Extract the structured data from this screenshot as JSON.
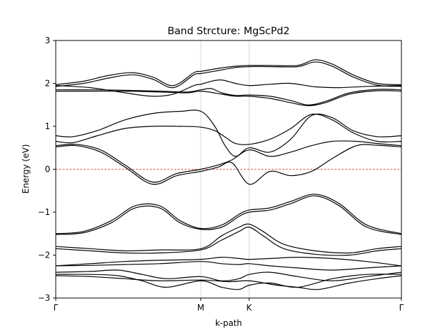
{
  "chart_data": {
    "type": "line",
    "title": "Band Strcture: MgScPd2",
    "xlabel": "k-path",
    "ylabel": "Energy (eV)",
    "ylim": [
      -3,
      3
    ],
    "yticks": [
      "3",
      "2",
      "1",
      "0",
      "−1",
      "−2",
      "−3"
    ],
    "ytick_values": [
      3,
      2,
      1,
      0,
      -1,
      -2,
      -3
    ],
    "xlim": [
      0,
      1
    ],
    "high_symmetry_points": [
      {
        "label": "Γ",
        "x": 0.0
      },
      {
        "label": "M",
        "x": 0.4194
      },
      {
        "label": "K",
        "x": 0.5593
      },
      {
        "label": "Γ",
        "x": 1.0
      }
    ],
    "fermi_level": 0,
    "fermi_color": "#d62728",
    "line_color": "#000000",
    "vline_color": "#cccccc",
    "grid": false,
    "series": [
      {
        "x": [
          0,
          0.08,
          0.15,
          0.22,
          0.28,
          0.34,
          0.4,
          0.42,
          0.47,
          0.52,
          0.56,
          0.62,
          0.7,
          0.75,
          0.8,
          0.86,
          0.93,
          1.0
        ],
        "y": [
          1.97,
          2.05,
          2.18,
          2.25,
          2.15,
          1.95,
          2.25,
          2.28,
          2.35,
          2.4,
          2.42,
          2.42,
          2.42,
          2.55,
          2.45,
          2.2,
          2.0,
          1.97
        ]
      },
      {
        "x": [
          0,
          0.08,
          0.15,
          0.22,
          0.28,
          0.34,
          0.4,
          0.42,
          0.47,
          0.52,
          0.56,
          0.62,
          0.7,
          0.75,
          0.8,
          0.86,
          0.93,
          1.0
        ],
        "y": [
          1.93,
          2.0,
          2.12,
          2.2,
          2.1,
          1.9,
          2.2,
          2.23,
          2.3,
          2.37,
          2.39,
          2.39,
          2.39,
          2.5,
          2.4,
          2.15,
          1.96,
          1.93
        ]
      },
      {
        "x": [
          0,
          0.1,
          0.2,
          0.28,
          0.34,
          0.4,
          0.42,
          0.45,
          0.48,
          0.52,
          0.56,
          0.62,
          0.68,
          0.75,
          0.82,
          0.9,
          1.0
        ],
        "y": [
          1.95,
          1.9,
          1.78,
          1.7,
          1.75,
          1.95,
          1.98,
          2.05,
          2.08,
          2.0,
          1.95,
          1.98,
          2.0,
          1.92,
          1.9,
          1.93,
          1.95
        ]
      },
      {
        "x": [
          0,
          0.1,
          0.2,
          0.3,
          0.38,
          0.42,
          0.45,
          0.48,
          0.52,
          0.56,
          0.62,
          0.68,
          0.73,
          0.78,
          0.85,
          0.93,
          1.0
        ],
        "y": [
          1.85,
          1.85,
          1.84,
          1.82,
          1.8,
          1.85,
          1.88,
          1.78,
          1.72,
          1.73,
          1.7,
          1.6,
          1.5,
          1.58,
          1.78,
          1.86,
          1.85
        ]
      },
      {
        "x": [
          0,
          0.1,
          0.2,
          0.3,
          0.38,
          0.42,
          0.48,
          0.52,
          0.56,
          0.62,
          0.68,
          0.73,
          0.78,
          0.85,
          0.93,
          1.0
        ],
        "y": [
          1.82,
          1.82,
          1.82,
          1.8,
          1.78,
          1.82,
          1.75,
          1.7,
          1.7,
          1.65,
          1.55,
          1.48,
          1.55,
          1.75,
          1.83,
          1.82
        ]
      },
      {
        "x": [
          0,
          0.05,
          0.12,
          0.2,
          0.28,
          0.36,
          0.42,
          0.46,
          0.49,
          0.52,
          0.56,
          0.62,
          0.68,
          0.74,
          0.8,
          0.86,
          0.93,
          1.0
        ],
        "y": [
          0.78,
          0.76,
          0.9,
          1.15,
          1.3,
          1.35,
          1.35,
          1.0,
          0.55,
          0.3,
          0.5,
          0.4,
          0.7,
          1.25,
          1.2,
          0.9,
          0.76,
          0.78
        ]
      },
      {
        "x": [
          0,
          0.05,
          0.12,
          0.2,
          0.28,
          0.36,
          0.42,
          0.46,
          0.49,
          0.52,
          0.56,
          0.62,
          0.68,
          0.74,
          0.8,
          0.86,
          0.93,
          1.0
        ],
        "y": [
          0.65,
          0.62,
          0.78,
          0.95,
          1.0,
          1.0,
          0.98,
          0.9,
          0.75,
          0.6,
          0.58,
          0.7,
          0.95,
          1.28,
          1.15,
          0.85,
          0.65,
          0.65
        ]
      },
      {
        "x": [
          0,
          0.06,
          0.13,
          0.2,
          0.28,
          0.35,
          0.42,
          0.47,
          0.51,
          0.56,
          0.62,
          0.68,
          0.74,
          0.8,
          0.87,
          0.93,
          1.0
        ],
        "y": [
          0.55,
          0.58,
          0.45,
          0.1,
          -0.3,
          -0.1,
          0.0,
          0.1,
          0.22,
          0.45,
          0.3,
          0.4,
          0.55,
          0.65,
          0.65,
          0.6,
          0.55
        ]
      },
      {
        "x": [
          0,
          0.06,
          0.13,
          0.2,
          0.28,
          0.35,
          0.42,
          0.47,
          0.51,
          0.56,
          0.62,
          0.68,
          0.74,
          0.8,
          0.87,
          0.93,
          1.0
        ],
        "y": [
          0.52,
          0.55,
          0.4,
          0.05,
          -0.35,
          -0.15,
          -0.05,
          0.05,
          0.15,
          -0.35,
          -0.05,
          -0.15,
          -0.05,
          0.25,
          0.55,
          0.56,
          0.52
        ]
      },
      {
        "x": [
          0,
          0.08,
          0.16,
          0.23,
          0.3,
          0.36,
          0.42,
          0.48,
          0.53,
          0.56,
          0.62,
          0.68,
          0.75,
          0.82,
          0.9,
          1.0
        ],
        "y": [
          -1.5,
          -1.45,
          -1.2,
          -0.85,
          -0.85,
          -1.2,
          -1.38,
          -1.3,
          -1.05,
          -0.95,
          -0.9,
          -0.75,
          -0.58,
          -0.8,
          -1.3,
          -1.5
        ]
      },
      {
        "x": [
          0,
          0.08,
          0.16,
          0.23,
          0.3,
          0.36,
          0.42,
          0.48,
          0.53,
          0.56,
          0.62,
          0.68,
          0.75,
          0.82,
          0.9,
          1.0
        ],
        "y": [
          -1.52,
          -1.48,
          -1.25,
          -0.9,
          -0.9,
          -1.25,
          -1.4,
          -1.35,
          -1.1,
          -1.0,
          -0.95,
          -0.8,
          -0.62,
          -0.85,
          -1.35,
          -1.52
        ]
      },
      {
        "x": [
          0,
          0.1,
          0.2,
          0.3,
          0.42,
          0.48,
          0.53,
          0.56,
          0.6,
          0.66,
          0.75,
          0.85,
          0.93,
          1.0
        ],
        "y": [
          -1.8,
          -1.85,
          -1.9,
          -1.88,
          -1.85,
          -1.55,
          -1.35,
          -1.28,
          -1.45,
          -1.75,
          -1.9,
          -1.95,
          -1.85,
          -1.8
        ]
      },
      {
        "x": [
          0,
          0.1,
          0.2,
          0.3,
          0.42,
          0.48,
          0.53,
          0.56,
          0.6,
          0.66,
          0.75,
          0.85,
          0.93,
          1.0
        ],
        "y": [
          -1.85,
          -1.9,
          -1.95,
          -1.95,
          -1.88,
          -1.65,
          -1.45,
          -1.35,
          -1.55,
          -1.85,
          -1.98,
          -2.0,
          -1.9,
          -1.85
        ]
      },
      {
        "x": [
          0,
          0.1,
          0.2,
          0.3,
          0.42,
          0.48,
          0.53,
          0.56,
          0.62,
          0.7,
          0.8,
          0.9,
          1.0
        ],
        "y": [
          -2.25,
          -2.2,
          -2.15,
          -2.12,
          -2.1,
          -2.05,
          -2.08,
          -2.1,
          -2.08,
          -2.05,
          -2.08,
          -2.15,
          -2.25
        ]
      },
      {
        "x": [
          0,
          0.1,
          0.2,
          0.3,
          0.42,
          0.48,
          0.53,
          0.56,
          0.62,
          0.7,
          0.8,
          0.9,
          1.0
        ],
        "y": [
          -2.25,
          -2.24,
          -2.22,
          -2.2,
          -2.15,
          -2.2,
          -2.22,
          -2.2,
          -2.25,
          -2.3,
          -2.35,
          -2.3,
          -2.25
        ]
      },
      {
        "x": [
          0,
          0.1,
          0.18,
          0.25,
          0.32,
          0.42,
          0.48,
          0.53,
          0.56,
          0.62,
          0.7,
          0.8,
          0.9,
          1.0
        ],
        "y": [
          -2.4,
          -2.38,
          -2.35,
          -2.45,
          -2.55,
          -2.5,
          -2.6,
          -2.55,
          -2.45,
          -2.4,
          -2.5,
          -2.6,
          -2.5,
          -2.4
        ]
      },
      {
        "x": [
          0,
          0.1,
          0.18,
          0.25,
          0.32,
          0.42,
          0.48,
          0.53,
          0.56,
          0.62,
          0.7,
          0.8,
          0.9,
          1.0
        ],
        "y": [
          -2.45,
          -2.45,
          -2.48,
          -2.6,
          -2.75,
          -2.6,
          -2.75,
          -2.8,
          -2.7,
          -2.65,
          -2.75,
          -2.55,
          -2.45,
          -2.45
        ]
      },
      {
        "x": [
          0,
          0.1,
          0.2,
          0.3,
          0.42,
          0.5,
          0.56,
          0.64,
          0.7,
          0.76,
          0.85,
          0.93,
          1.0
        ],
        "y": [
          -2.48,
          -2.5,
          -2.55,
          -2.6,
          -2.58,
          -2.62,
          -2.6,
          -2.7,
          -2.75,
          -2.8,
          -2.65,
          -2.55,
          -2.48
        ]
      }
    ]
  }
}
